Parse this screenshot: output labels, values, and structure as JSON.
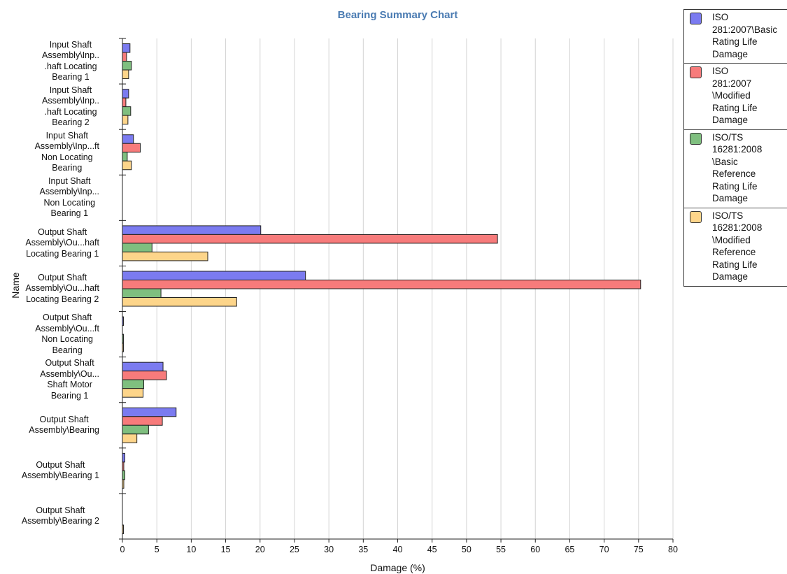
{
  "chart_data": {
    "type": "bar",
    "orientation": "horizontal",
    "title": "Bearing Summary Chart",
    "xlabel": "Damage (%)",
    "ylabel": "Name",
    "xlim": [
      0,
      80
    ],
    "xticks": [
      0,
      5,
      10,
      15,
      20,
      25,
      30,
      35,
      40,
      45,
      50,
      55,
      60,
      65,
      70,
      75,
      80
    ],
    "grid": true,
    "legend_position": "right",
    "categories": [
      "Input Shaft\nAssembly\\Inp..\n.haft Locating\nBearing 1",
      "Input Shaft\nAssembly\\Inp..\n.haft Locating\nBearing 2",
      "Input Shaft\nAssembly\\Inp...ft\nNon Locating\nBearing",
      "Input Shaft\nAssembly\\Inp...\nNon Locating\nBearing 1",
      "Output Shaft\nAssembly\\Ou...haft\nLocating Bearing 1",
      "Output Shaft\nAssembly\\Ou...haft\nLocating Bearing 2",
      "Output Shaft\nAssembly\\Ou...ft\nNon Locating\nBearing",
      "Output Shaft\nAssembly\\Ou...\nShaft Motor\nBearing 1",
      "Output Shaft\nAssembly\\Bearing",
      "Output Shaft\nAssembly\\Bearing 1",
      "Output Shaft\nAssembly\\Bearing 2"
    ],
    "series": [
      {
        "name": "ISO\n281:2007\\Basic\nRating Life\nDamage",
        "color": "#7b7bf0",
        "values": [
          1.1,
          0.9,
          1.6,
          0,
          20.1,
          26.6,
          0.1,
          5.9,
          7.8,
          0.35,
          0
        ]
      },
      {
        "name": "ISO\n281:2007\n\\Modified\nRating Life\nDamage",
        "color": "#f77b7b",
        "values": [
          0.6,
          0.5,
          2.6,
          0,
          54.5,
          75.3,
          0,
          6.4,
          5.8,
          0.2,
          0
        ]
      },
      {
        "name": "ISO/TS\n16281:2008\n\\Basic\nReference\nRating Life\nDamage",
        "color": "#7fbf7f",
        "values": [
          1.3,
          1.2,
          0.7,
          0,
          4.3,
          5.6,
          0.05,
          3.1,
          3.8,
          0.35,
          0
        ]
      },
      {
        "name": "ISO/TS\n16281:2008\n\\Modified\nReference\nRating Life\nDamage",
        "color": "#fdd58a",
        "values": [
          0.9,
          0.8,
          1.3,
          0,
          12.4,
          16.6,
          0.05,
          3.0,
          2.1,
          0.2,
          0.15
        ]
      }
    ]
  }
}
